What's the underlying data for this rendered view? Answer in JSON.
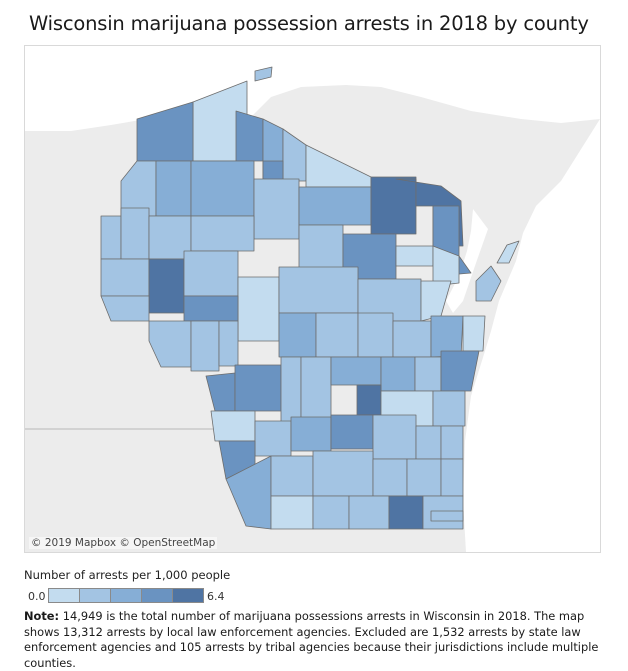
{
  "title": "Wisconsin marijuana possession arrests in 2018 by county",
  "attribution": "© 2019 Mapbox © OpenStreetMap",
  "legend": {
    "title": "Number of arrests per 1,000 people",
    "min_label": "0.0",
    "max_label": "6.4",
    "swatches": [
      "#c3dcef",
      "#a3c4e3",
      "#86aed6",
      "#6a93c1",
      "#4f74a3"
    ]
  },
  "note": {
    "label": "Note:",
    "text": " 14,949 is the total number of marijuana possessions arrests in Wisconsin in 2018. The map shows 13,312 arrests by local law enforcement agencies. Excluded are 1,532 arrests by state law enforcement agencies and 105 arrests by tribal agencies because their jurisdictions include multiple counties."
  },
  "colors": {
    "water": "#ffffff",
    "land": "#ececec",
    "county_border": "#6d6d6d"
  }
}
